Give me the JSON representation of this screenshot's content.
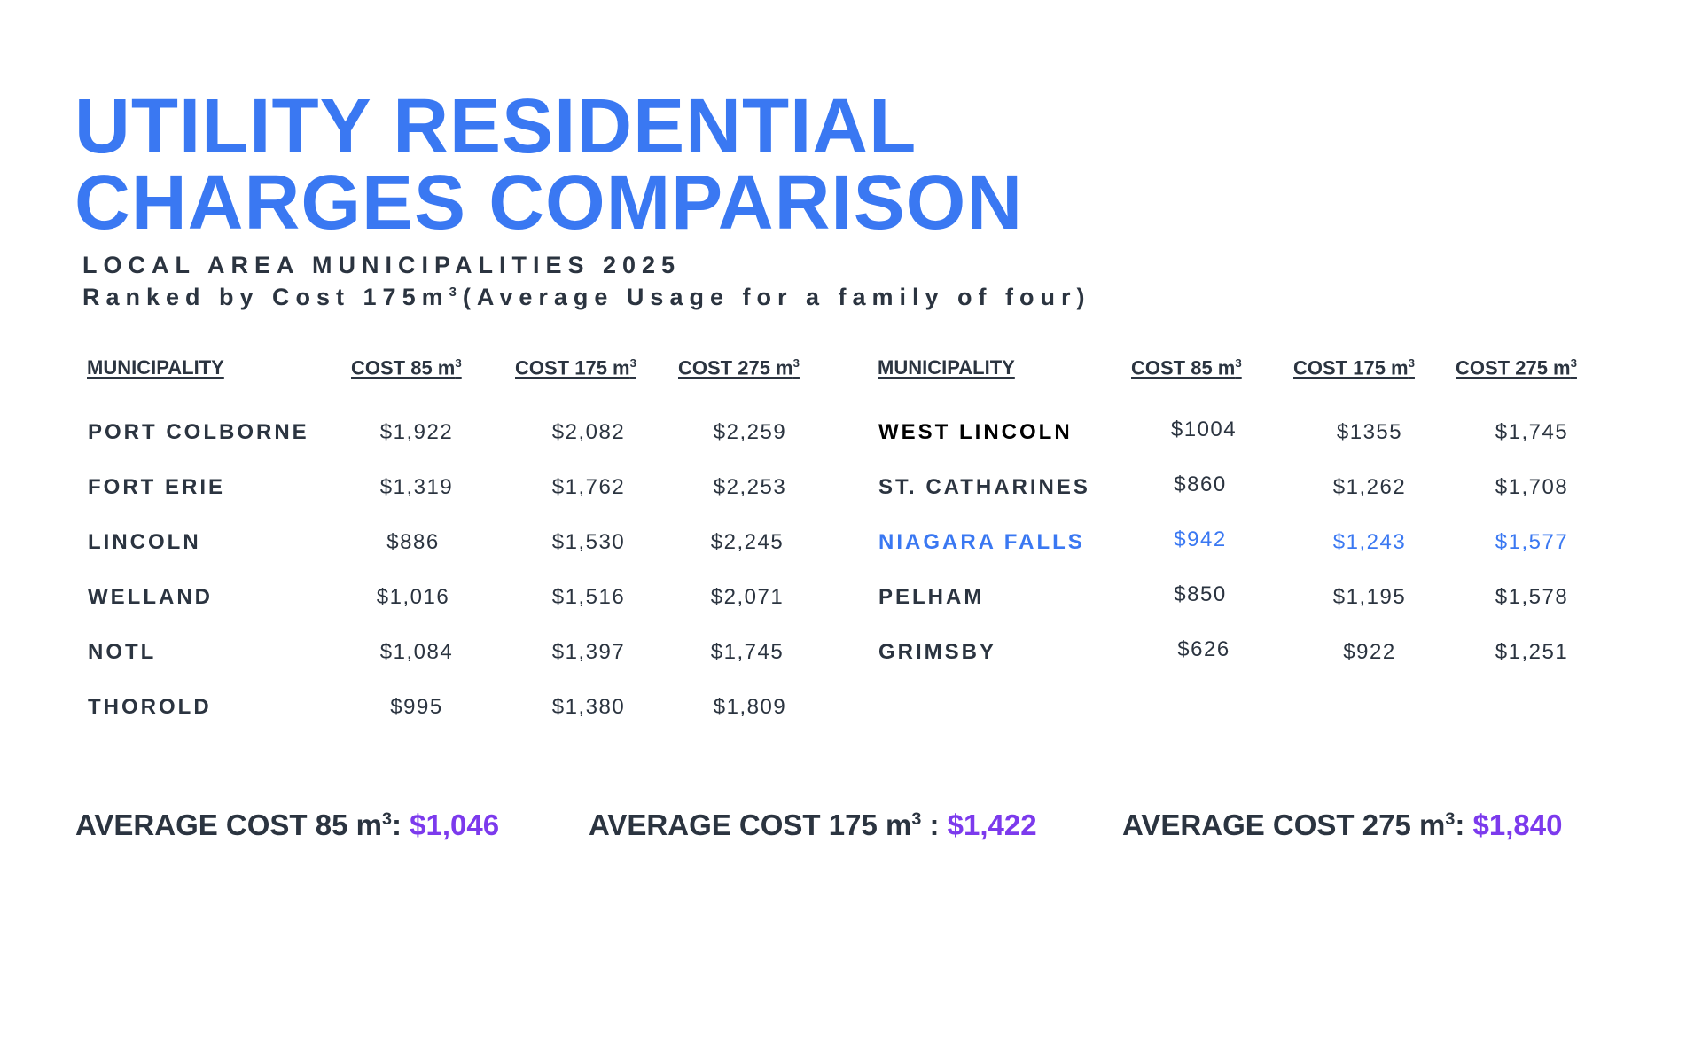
{
  "title_line1": "UTILITY RESIDENTIAL",
  "title_line2": "CHARGES COMPARISON",
  "subtitle_line1": "LOCAL AREA MUNICIPALITIES 2025",
  "subtitle_line2_pre": "Ranked by Cost 175m",
  "subtitle_line2_sup": "3",
  "subtitle_line2_post": "(Average Usage for a family of four)",
  "headers": {
    "municipality": "MUNICIPALITY",
    "cost85": "COST 85 m",
    "cost175": "COST 175 m",
    "cost275": "COST 275 m",
    "sup": "3"
  },
  "left_rows": [
    {
      "name": "PORT COLBORNE",
      "c85": "$1,922",
      "c175": "$2,082",
      "c275": "$2,259"
    },
    {
      "name": "FORT ERIE",
      "c85": "$1,319",
      "c175": "$1,762",
      "c275": "$2,253"
    },
    {
      "name": "LINCOLN",
      "c85": "$886",
      "c175": "$1,530",
      "c275": "$2,245"
    },
    {
      "name": "WELLAND",
      "c85": "$1,016",
      "c175": "$1,516",
      "c275": "$2,071"
    },
    {
      "name": "NOTL",
      "c85": "$1,084",
      "c175": "$1,397",
      "c275": "$1,745"
    },
    {
      "name": "THOROLD",
      "c85": "$995",
      "c175": "$1,380",
      "c275": "$1,809"
    }
  ],
  "right_rows": [
    {
      "name": "WEST LINCOLN",
      "c85": "$1004",
      "c175": "$1355",
      "c275": "$1,745"
    },
    {
      "name": "ST. CATHARINES",
      "c85": "$860",
      "c175": "$1,262",
      "c275": "$1,708"
    },
    {
      "name": "NIAGARA FALLS",
      "c85": "$942",
      "c175": "$1,243",
      "c275": "$1,577"
    },
    {
      "name": "PELHAM",
      "c85": "$850",
      "c175": "$1,195",
      "c275": "$1,578"
    },
    {
      "name": "GRIMSBY",
      "c85": "$626",
      "c175": "$922",
      "c275": "$1,251"
    }
  ],
  "averages": {
    "a85_label": "AVERAGE COST 85 m",
    "a85_sep": ": ",
    "a85_value": "$1,046",
    "a175_label": "AVERAGE COST 175 m",
    "a175_sep": " : ",
    "a175_value": "$1,422",
    "a275_label": "AVERAGE COST 275 m",
    "a275_sep": ": ",
    "a275_value": "$1,840",
    "sup": "3"
  },
  "colors": {
    "title_blue": "#3a78f2",
    "text_dark": "#2b3440",
    "average_purple": "#7c3aed",
    "highlight_blue": "#3a78f2"
  }
}
